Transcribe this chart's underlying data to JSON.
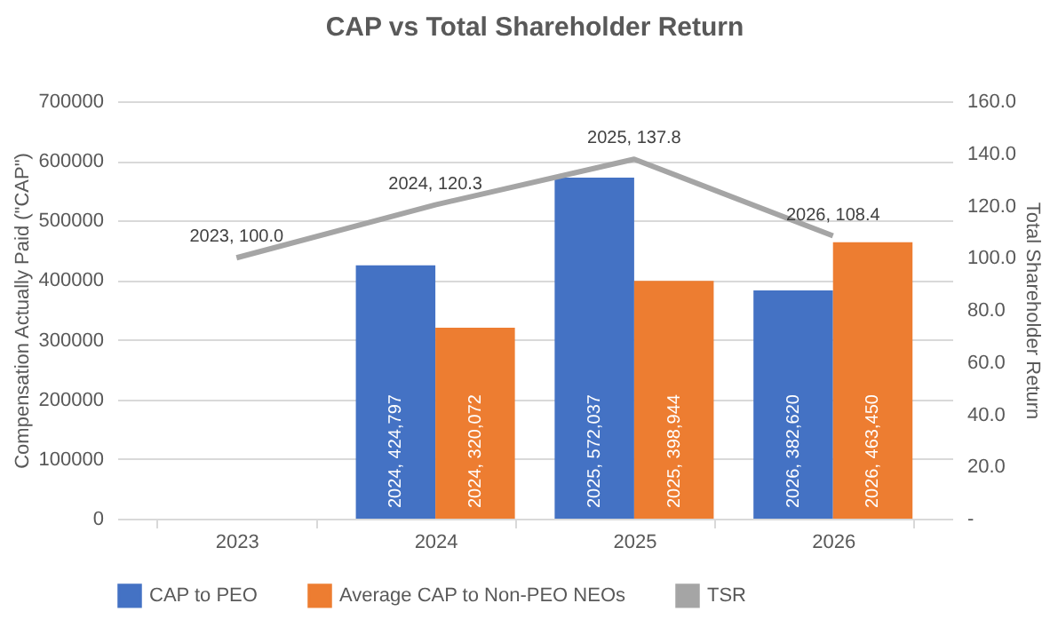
{
  "chart_data": {
    "type": "bar",
    "title": "CAP vs Total Shareholder Return",
    "ylabel": "Compensation Actually Paid (\"CAP\")",
    "y2label": "Total Shareholder Return",
    "categories": [
      "2023",
      "2024",
      "2025",
      "2026"
    ],
    "series": [
      {
        "name": "CAP to PEO",
        "color": "#4472c4",
        "values": [
          null,
          424797,
          572037,
          382620
        ],
        "value_labels": [
          null,
          "2024, 424,797",
          "2025, 572,037",
          "2026, 382,620"
        ]
      },
      {
        "name": "Average CAP to Non-PEO NEOs",
        "color": "#ed7d31",
        "values": [
          null,
          320072,
          398944,
          463450
        ],
        "value_labels": [
          null,
          "2024, 320,072",
          "2025, 398,944",
          "2026, 463,450"
        ]
      },
      {
        "name": "TSR",
        "type": "line",
        "axis": "y2",
        "color": "#a5a5a5",
        "values": [
          100.0,
          120.3,
          137.8,
          108.4
        ],
        "value_labels": [
          "2023,  100.0",
          "2024,  120.3",
          "2025,  137.8",
          "2026,  108.4"
        ]
      }
    ],
    "ylim": [
      0,
      700000
    ],
    "yticks": [
      0,
      100000,
      200000,
      300000,
      400000,
      500000,
      600000,
      700000
    ],
    "y2lim": [
      0,
      160
    ],
    "y2ticks": [
      {
        "value": 0,
        "label": "-"
      },
      {
        "value": 20,
        "label": "20.0"
      },
      {
        "value": 40,
        "label": "40.0"
      },
      {
        "value": 60,
        "label": "60.0"
      },
      {
        "value": 80,
        "label": "80.0"
      },
      {
        "value": 100,
        "label": "100.0"
      },
      {
        "value": 120,
        "label": "120.0"
      },
      {
        "value": 140,
        "label": "140.0"
      },
      {
        "value": 160,
        "label": "160.0"
      }
    ],
    "grid": "y",
    "legend": "bottom",
    "marker": "none",
    "line_style": "solid"
  }
}
